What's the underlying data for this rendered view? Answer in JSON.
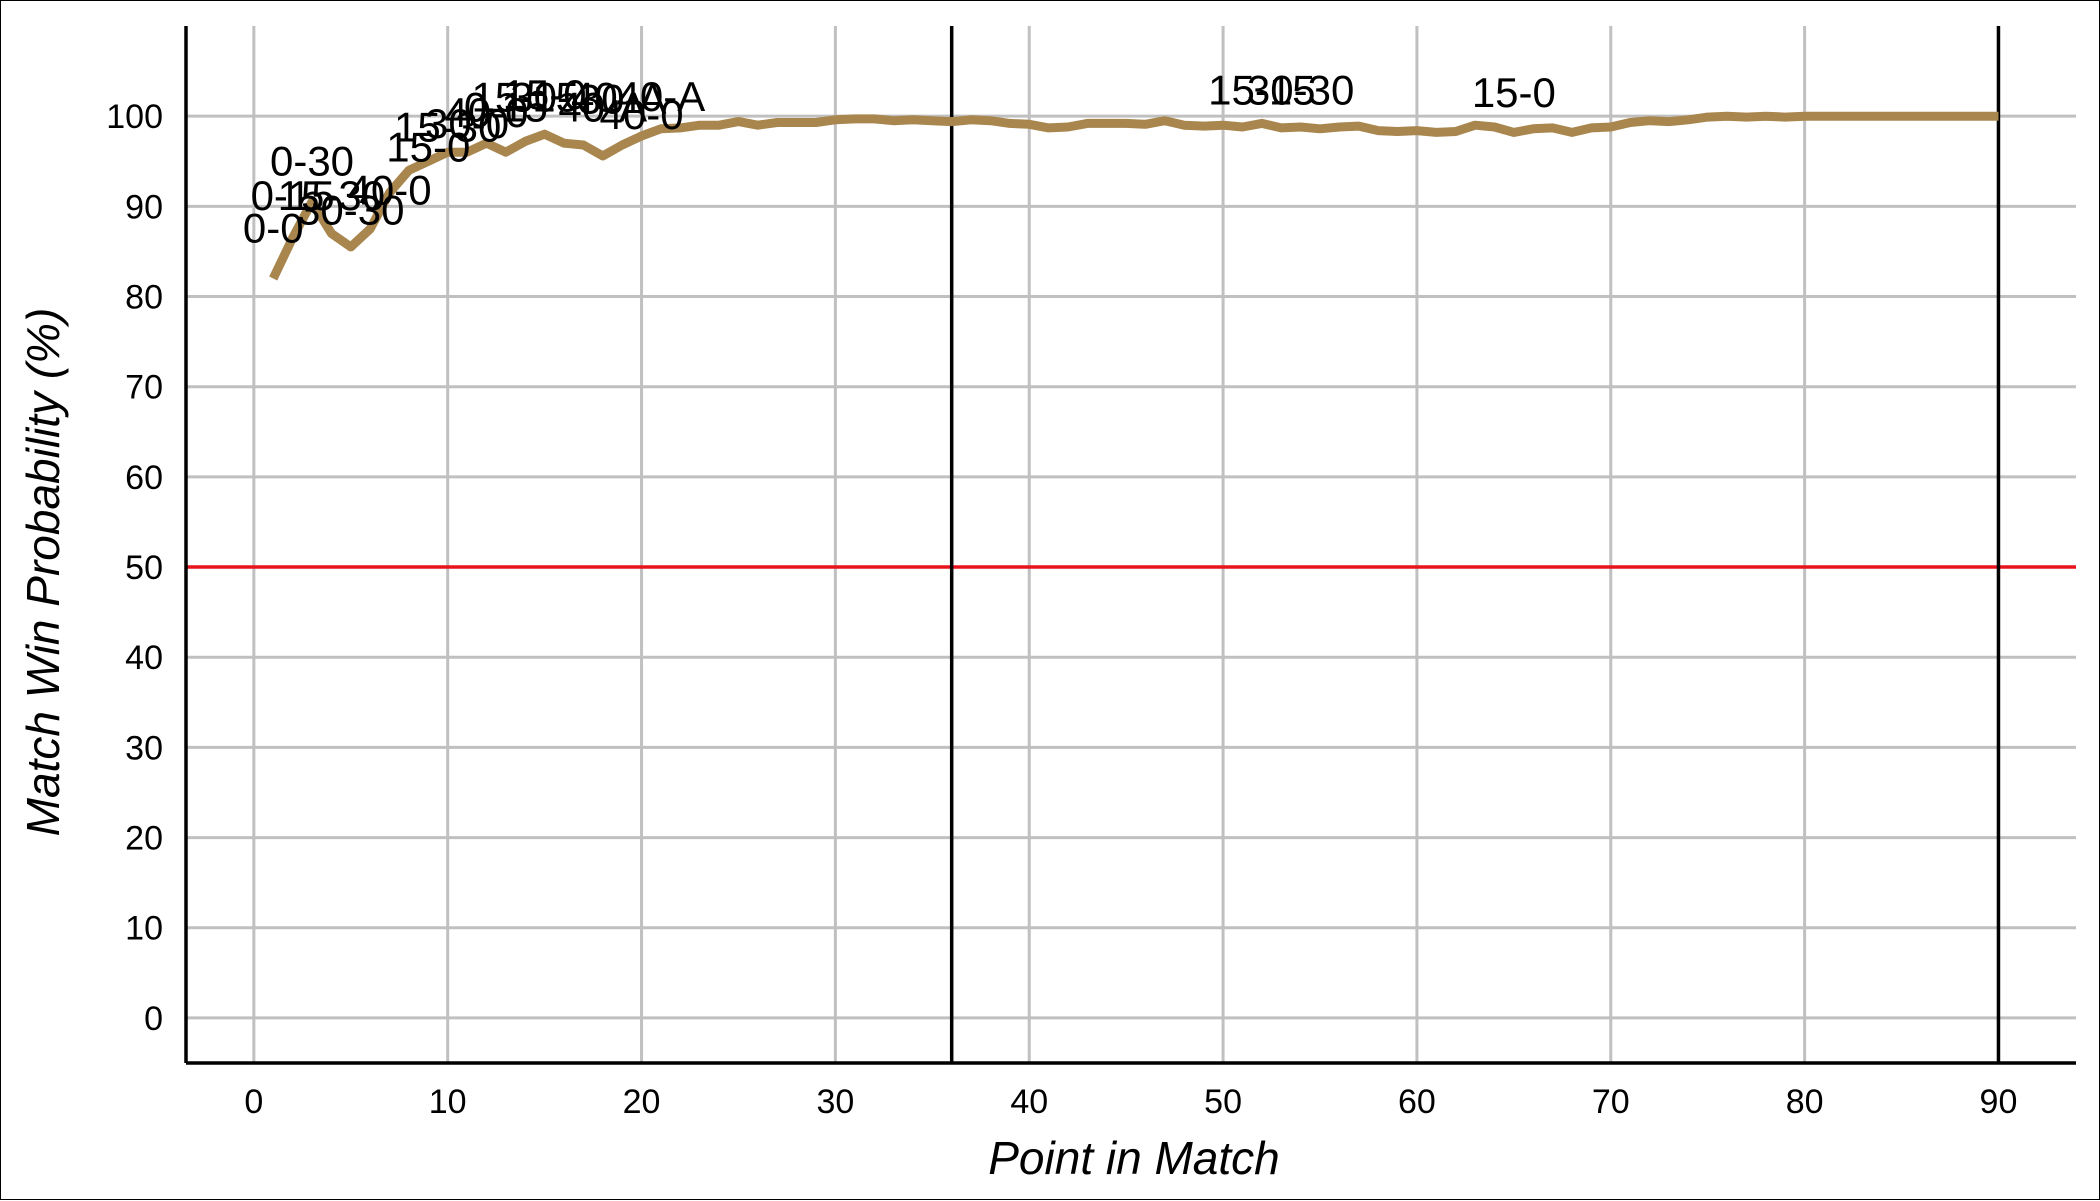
{
  "chart_data": {
    "type": "line",
    "xlabel": "Point in Match",
    "ylabel": "Match Win Probability (%)",
    "xlim": [
      -3.5,
      94
    ],
    "ylim": [
      -5,
      110
    ],
    "x_ticks": [
      0,
      10,
      20,
      30,
      40,
      50,
      60,
      70,
      80,
      90
    ],
    "y_ticks": [
      0,
      10,
      20,
      30,
      40,
      50,
      60,
      70,
      80,
      90,
      100
    ],
    "grid": true,
    "reference_line": {
      "y": 50,
      "color": "#e8141b"
    },
    "set_boundaries": [
      36,
      90
    ],
    "series": [
      {
        "color": "#a8864e",
        "x": [
          1,
          2,
          3,
          4,
          5,
          6,
          7,
          8,
          9,
          10,
          11,
          12,
          13,
          14,
          15,
          16,
          17,
          18,
          19,
          20,
          21,
          22,
          23,
          24,
          25,
          26,
          27,
          28,
          29,
          30,
          31,
          32,
          33,
          34,
          35,
          36,
          37,
          38,
          39,
          40,
          41,
          42,
          43,
          44,
          45,
          46,
          47,
          48,
          49,
          50,
          51,
          52,
          53,
          54,
          55,
          56,
          57,
          58,
          59,
          60,
          61,
          62,
          63,
          64,
          65,
          66,
          67,
          68,
          69,
          70,
          71,
          72,
          73,
          74,
          75,
          76,
          77,
          78,
          79,
          80,
          81,
          82,
          83,
          84,
          85,
          86,
          87,
          88,
          89,
          90
        ],
        "y": [
          82,
          86.5,
          90.5,
          87,
          85.5,
          87.5,
          91.5,
          94,
          95,
          96,
          96,
          97,
          96,
          97.2,
          98,
          97,
          96.8,
          95.6,
          96.8,
          97.8,
          98.6,
          98.7,
          99,
          99,
          99.4,
          99,
          99.3,
          99.3,
          99.3,
          99.6,
          99.7,
          99.7,
          99.5,
          99.6,
          99.5,
          99.4,
          99.6,
          99.5,
          99.2,
          99.1,
          98.7,
          98.8,
          99.2,
          99.2,
          99.2,
          99.1,
          99.5,
          99,
          98.9,
          99,
          98.8,
          99.2,
          98.7,
          98.8,
          98.6,
          98.8,
          98.9,
          98.4,
          98.3,
          98.4,
          98.2,
          98.3,
          99,
          98.8,
          98.2,
          98.6,
          98.7,
          98.2,
          98.7,
          98.8,
          99.3,
          99.5,
          99.4,
          99.6,
          99.9,
          100,
          99.9,
          100,
          99.9,
          100,
          100,
          100,
          100,
          100,
          100,
          100,
          100,
          100,
          100,
          100
        ]
      }
    ],
    "annotations": [
      {
        "text": "0-0",
        "x": 1,
        "y": 86
      },
      {
        "text": "0-15",
        "x": 2,
        "y": 89.6
      },
      {
        "text": "0-30",
        "x": 3,
        "y": 93.4
      },
      {
        "text": "15-30",
        "x": 4,
        "y": 89.6
      },
      {
        "text": "30-30",
        "x": 5,
        "y": 88
      },
      {
        "text": "40-0",
        "x": 7,
        "y": 90.2
      },
      {
        "text": "15-0",
        "x": 9,
        "y": 95
      },
      {
        "text": "15-30",
        "x": 10,
        "y": 97.2
      },
      {
        "text": "30-0",
        "x": 11,
        "y": 97.6
      },
      {
        "text": "40-0",
        "x": 12,
        "y": 98.8
      },
      {
        "text": "0-15",
        "x": 13,
        "y": 99.4
      },
      {
        "text": "15-15",
        "x": 14,
        "y": 100.5
      },
      {
        "text": "15-0",
        "x": 15,
        "y": 100.8
      },
      {
        "text": "30-40",
        "x": 16,
        "y": 100.5
      },
      {
        "text": "40-A",
        "x": 18,
        "y": 99.4
      },
      {
        "text": "30-A",
        "x": 19,
        "y": 100.3
      },
      {
        "text": "40-0",
        "x": 20,
        "y": 98.6
      },
      {
        "text": "40-A",
        "x": 21,
        "y": 100.6
      },
      {
        "text": "15-15",
        "x": 52,
        "y": 101.3
      },
      {
        "text": "30-30",
        "x": 54,
        "y": 101.3
      },
      {
        "text": "15-0",
        "x": 65,
        "y": 101
      }
    ]
  }
}
